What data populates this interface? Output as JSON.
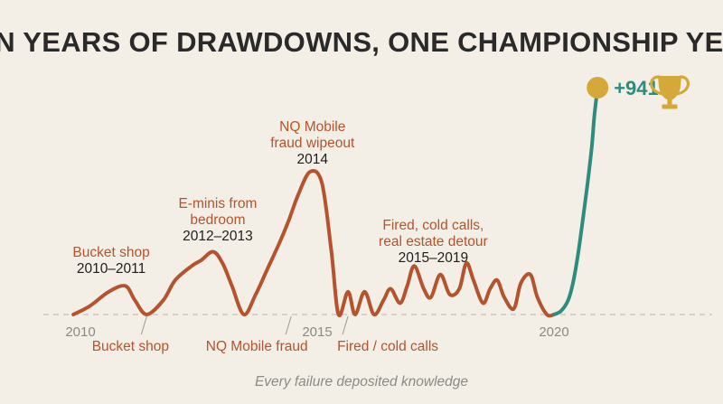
{
  "chart_data": {
    "type": "line",
    "title": "TEN YEARS OF DRAWDOWNS, ONE CHAMPIONSHIP YEAR",
    "xlabel": "",
    "ylabel": "",
    "x_ticks": [
      "2010",
      "2015",
      "2020"
    ],
    "xlim": [
      2010,
      2021.3
    ],
    "series": [
      {
        "x": [
          2009.85,
          2010.2,
          2010.6,
          2010.95,
          2011.15,
          2011.4,
          2011.75,
          2012.0,
          2012.35,
          2012.55,
          2012.8,
          2013.0,
          2013.2,
          2013.45,
          2013.7,
          2013.95,
          2014.2,
          2014.4,
          2014.6,
          2014.85,
          2015.1,
          2015.3,
          2015.45,
          2015.65,
          2015.8,
          2016.0,
          2016.2,
          2016.4,
          2016.55,
          2016.75,
          2016.9,
          2017.05,
          2017.25,
          2017.4,
          2017.6,
          2017.8,
          2018.0,
          2018.15,
          2018.3,
          2018.5,
          2018.65,
          2018.8,
          2018.95,
          2019.15,
          2019.3,
          2019.5,
          2019.65,
          2019.85,
          2020.0
        ],
        "y": [
          0,
          3,
          8,
          10,
          5,
          0,
          5,
          12,
          17,
          19,
          22,
          18,
          10,
          0,
          7,
          16,
          25,
          33,
          42,
          50,
          46,
          22,
          0,
          8,
          0,
          8,
          0,
          5,
          9,
          4,
          10,
          17,
          9,
          6,
          14,
          7,
          9,
          18,
          12,
          4,
          9,
          12,
          6,
          2,
          11,
          14,
          6,
          0,
          0
        ]
      },
      {
        "x": [
          2020.0,
          2020.15,
          2020.3,
          2020.4,
          2020.5,
          2020.6,
          2020.7,
          2020.8,
          2020.85,
          2020.92
        ],
        "y": [
          0,
          15,
          60,
          130,
          240,
          380,
          530,
          700,
          820,
          941
        ]
      }
    ],
    "series_colors": [
      "#b5532c",
      "#2e8c7e"
    ],
    "end_marker_color": "#d4a93a",
    "end_value_label": "+941%",
    "above_annotations": [
      {
        "x": 2010.65,
        "label": [
          "Bucket shop"
        ],
        "year": "2010–2011"
      },
      {
        "x": 2012.9,
        "label": [
          "E-minis from",
          "bedroom"
        ],
        "year": "2012–2013"
      },
      {
        "x": 2014.9,
        "label": [
          "NQ Mobile",
          "fraud wipeout"
        ],
        "year": "2014"
      },
      {
        "x": 2017.45,
        "label": [
          "Fired, cold calls,",
          "real estate detour"
        ],
        "year": "2015–2019"
      }
    ],
    "below_annotations": [
      {
        "x": 2011.4,
        "label": "Bucket shop"
      },
      {
        "x": 2014.45,
        "label": "NQ Mobile fraud"
      },
      {
        "x": 2015.65,
        "label": "Fired / cold calls"
      }
    ],
    "footnote": "Every failure deposited knowledge",
    "grid": false
  }
}
